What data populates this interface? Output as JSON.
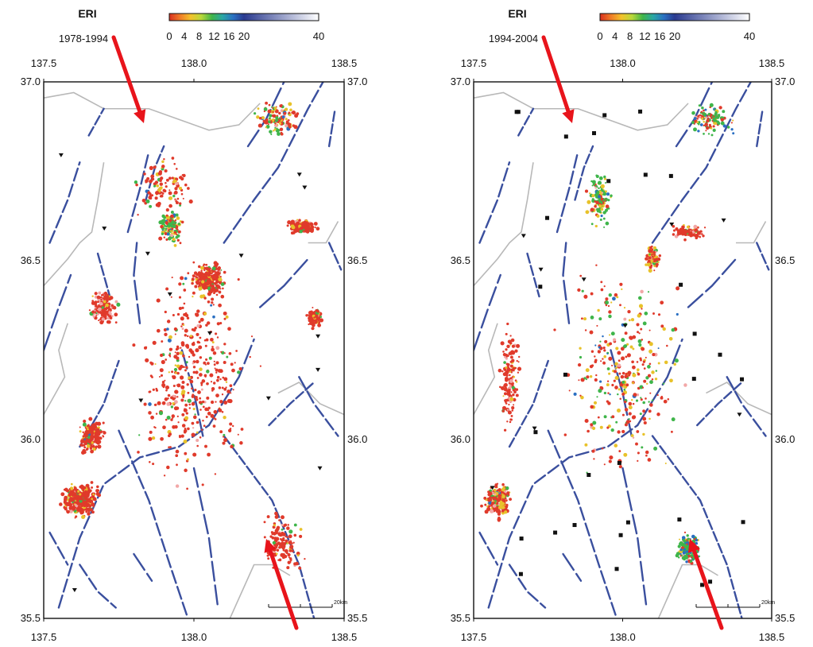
{
  "panels": [
    {
      "id": "left",
      "source": "ERI",
      "period": "1978-1994",
      "colorbar": {
        "ticks": [
          "0",
          "4",
          "8",
          "12",
          "16",
          "20",
          "40"
        ],
        "values": [
          0,
          4,
          8,
          12,
          16,
          20,
          40
        ]
      },
      "lon_ticks": [
        "137.5",
        "138.0",
        "138.5"
      ],
      "lat_ticks": [
        "37.0",
        "36.5",
        "36.0",
        "35.5"
      ],
      "scale_label": "20km"
    },
    {
      "id": "right",
      "source": "ERI",
      "period": "1994-2004",
      "colorbar": {
        "ticks": [
          "0",
          "4",
          "8",
          "12",
          "16",
          "20",
          "40"
        ],
        "values": [
          0,
          4,
          8,
          12,
          16,
          20,
          40
        ]
      },
      "lon_ticks": [
        "137.5",
        "138.0",
        "138.5"
      ],
      "lat_ticks": [
        "37.0",
        "36.5",
        "36.0",
        "35.5"
      ],
      "scale_label": "20km"
    }
  ],
  "colors": {
    "fault": "#3a4f9e",
    "coast": "#b8b8b8",
    "arrow": "#e8141b",
    "quake_shallow": "#e03a2b",
    "quake_mid": "#e8c22a",
    "quake_green": "#3fb54a",
    "quake_blue": "#2a6fc2",
    "quake_pink": "#f2a7a7",
    "station": "#111111"
  },
  "colorbar_gradient": [
    "#d7301f",
    "#f07a27",
    "#f3c22b",
    "#b9d83a",
    "#3fb54a",
    "#2aa6a6",
    "#2a6fc2",
    "#2a3a8f",
    "#ffffff"
  ]
}
